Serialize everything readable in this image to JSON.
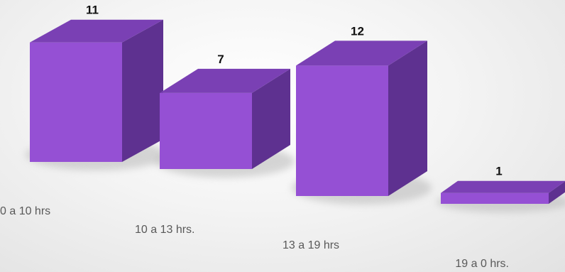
{
  "chart_data": {
    "type": "bar",
    "style": "3d-box",
    "categories": [
      "0 a 10 hrs",
      "10 a 13 hrs.",
      "13 a 19 hrs",
      "19 a 0 hrs."
    ],
    "values": [
      11,
      7,
      12,
      1
    ],
    "data_labels": [
      "11",
      "7",
      "12",
      "1"
    ],
    "title": "",
    "xlabel": "",
    "ylabel": "",
    "ylim": [
      0,
      12
    ],
    "grid": false,
    "legend": "none",
    "colors": {
      "front": "#9550d4",
      "top": "#7a40b4",
      "side": "#5e3190",
      "shadow": "#b8b8b8"
    }
  }
}
